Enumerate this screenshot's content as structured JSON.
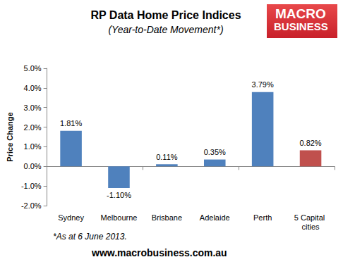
{
  "chart_data": {
    "type": "bar",
    "title": "RP Data Home Price Indices",
    "subtitle": "(Year-to-Date Movement*)",
    "logo": [
      "MACRO",
      "BUSINESS"
    ],
    "ylabel": "Price Change",
    "footnote": "*As at 6 June 2013.",
    "source": "www.macrobusiness.com.au",
    "categories": [
      "Sydney",
      "Melbourne",
      "Brisbane",
      "Adelaide",
      "Perth",
      "5 Capital cities"
    ],
    "values": [
      1.81,
      -1.1,
      0.11,
      0.35,
      3.79,
      0.82
    ],
    "value_labels": [
      "1.81%",
      "-1.10%",
      "0.11%",
      "0.35%",
      "3.79%",
      "0.82%"
    ],
    "colors": [
      "#4f81bd",
      "#4f81bd",
      "#4f81bd",
      "#4f81bd",
      "#4f81bd",
      "#c0504d"
    ],
    "data_labels": true,
    "grid": false,
    "ylim": [
      -2,
      5
    ],
    "yticks": [
      {
        "value": -2,
        "label": "-2.0%"
      },
      {
        "value": -1,
        "label": "-1.0%"
      },
      {
        "value": 0,
        "label": "0.0%"
      },
      {
        "value": 1,
        "label": "1.0%"
      },
      {
        "value": 2,
        "label": "2.0%"
      },
      {
        "value": 3,
        "label": "3.0%"
      },
      {
        "value": 4,
        "label": "4.0%"
      },
      {
        "value": 5,
        "label": "5.0%"
      }
    ]
  }
}
